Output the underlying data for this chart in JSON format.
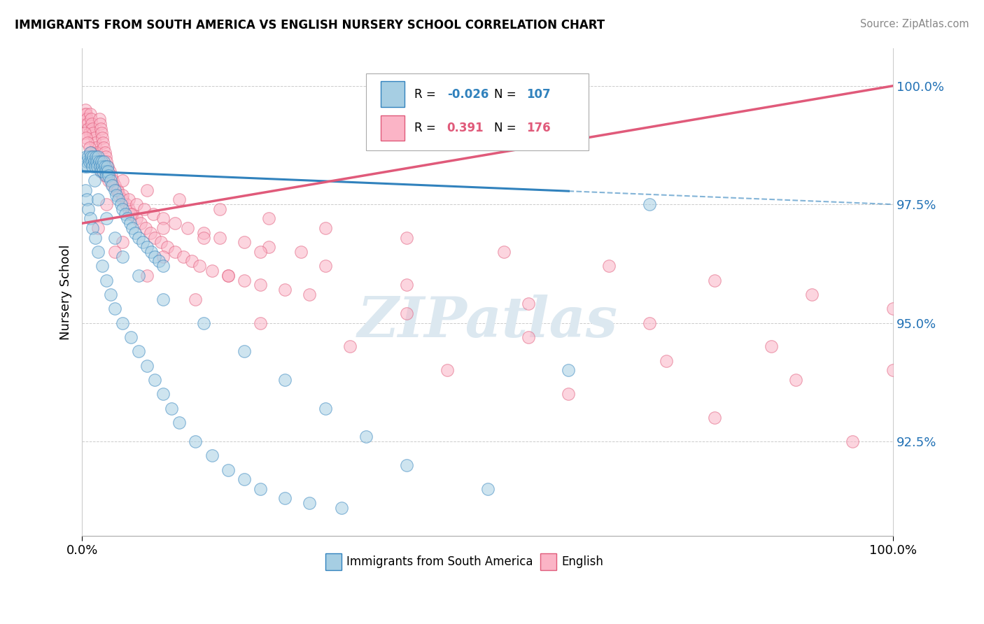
{
  "title": "IMMIGRANTS FROM SOUTH AMERICA VS ENGLISH NURSERY SCHOOL CORRELATION CHART",
  "source": "Source: ZipAtlas.com",
  "ylabel": "Nursery School",
  "xlim": [
    0.0,
    100.0
  ],
  "ylim": [
    90.5,
    100.8
  ],
  "blue_r": "-0.026",
  "blue_n": "107",
  "pink_r": "0.391",
  "pink_n": "176",
  "blue_face": "#a6cee3",
  "blue_edge": "#3182bd",
  "pink_face": "#fbb4c6",
  "pink_edge": "#e05a7a",
  "blue_line_color": "#3182bd",
  "pink_line_color": "#e05a7a",
  "ytick_vals": [
    92.5,
    95.0,
    97.5,
    100.0
  ],
  "blue_trend": [
    98.2,
    97.5
  ],
  "pink_trend": [
    97.1,
    100.0
  ],
  "blue_solid_end": 60.0,
  "blue_x": [
    0.3,
    0.5,
    0.6,
    0.7,
    0.8,
    0.9,
    1.0,
    1.1,
    1.2,
    1.3,
    1.4,
    1.5,
    1.6,
    1.7,
    1.8,
    1.9,
    2.0,
    2.1,
    2.2,
    2.3,
    2.4,
    2.5,
    2.6,
    2.7,
    2.8,
    2.9,
    3.0,
    3.1,
    3.2,
    3.3,
    3.5,
    3.7,
    4.0,
    4.2,
    4.5,
    4.8,
    5.0,
    5.3,
    5.6,
    5.9,
    6.2,
    6.5,
    7.0,
    7.5,
    8.0,
    8.5,
    9.0,
    9.5,
    10.0,
    0.4,
    0.6,
    0.8,
    1.0,
    1.3,
    1.6,
    2.0,
    2.5,
    3.0,
    3.5,
    4.0,
    5.0,
    6.0,
    7.0,
    8.0,
    9.0,
    10.0,
    11.0,
    12.0,
    14.0,
    16.0,
    18.0,
    20.0,
    22.0,
    25.0,
    28.0,
    32.0,
    1.5,
    2.0,
    3.0,
    4.0,
    5.0,
    7.0,
    10.0,
    15.0,
    20.0,
    25.0,
    30.0,
    35.0,
    40.0,
    50.0,
    60.0,
    70.0
  ],
  "blue_y": [
    98.3,
    98.5,
    98.4,
    98.3,
    98.5,
    98.4,
    98.6,
    98.5,
    98.4,
    98.3,
    98.5,
    98.4,
    98.3,
    98.5,
    98.4,
    98.3,
    98.5,
    98.4,
    98.3,
    98.2,
    98.4,
    98.3,
    98.2,
    98.4,
    98.3,
    98.2,
    98.1,
    98.3,
    98.2,
    98.1,
    98.0,
    97.9,
    97.8,
    97.7,
    97.6,
    97.5,
    97.4,
    97.3,
    97.2,
    97.1,
    97.0,
    96.9,
    96.8,
    96.7,
    96.6,
    96.5,
    96.4,
    96.3,
    96.2,
    97.8,
    97.6,
    97.4,
    97.2,
    97.0,
    96.8,
    96.5,
    96.2,
    95.9,
    95.6,
    95.3,
    95.0,
    94.7,
    94.4,
    94.1,
    93.8,
    93.5,
    93.2,
    92.9,
    92.5,
    92.2,
    91.9,
    91.7,
    91.5,
    91.3,
    91.2,
    91.1,
    98.0,
    97.6,
    97.2,
    96.8,
    96.4,
    96.0,
    95.5,
    95.0,
    94.4,
    93.8,
    93.2,
    92.6,
    92.0,
    91.5,
    94.0,
    97.5
  ],
  "pink_x": [
    0.2,
    0.3,
    0.4,
    0.5,
    0.6,
    0.7,
    0.8,
    0.9,
    1.0,
    1.1,
    1.2,
    1.3,
    1.4,
    1.5,
    1.6,
    1.7,
    1.8,
    1.9,
    2.0,
    2.1,
    2.2,
    2.3,
    2.4,
    2.5,
    2.6,
    2.7,
    2.8,
    2.9,
    3.0,
    3.2,
    3.4,
    3.6,
    3.8,
    4.0,
    4.3,
    4.6,
    5.0,
    5.4,
    5.8,
    6.2,
    6.7,
    7.2,
    7.8,
    8.4,
    9.0,
    9.7,
    10.5,
    11.5,
    12.5,
    13.5,
    14.5,
    16.0,
    18.0,
    20.0,
    22.0,
    25.0,
    0.3,
    0.5,
    0.7,
    0.9,
    1.1,
    1.4,
    1.7,
    2.0,
    2.4,
    2.8,
    3.3,
    3.8,
    4.4,
    5.0,
    5.8,
    6.7,
    7.7,
    8.8,
    10.0,
    11.5,
    13.0,
    15.0,
    17.0,
    20.0,
    23.0,
    27.0,
    5.0,
    8.0,
    12.0,
    17.0,
    23.0,
    30.0,
    40.0,
    52.0,
    65.0,
    78.0,
    90.0,
    100.0,
    3.0,
    6.0,
    10.0,
    15.0,
    22.0,
    30.0,
    40.0,
    55.0,
    70.0,
    85.0,
    100.0,
    2.0,
    5.0,
    10.0,
    18.0,
    28.0,
    40.0,
    55.0,
    72.0,
    88.0,
    4.0,
    8.0,
    14.0,
    22.0,
    33.0,
    45.0,
    60.0,
    78.0,
    95.0
  ],
  "pink_y": [
    99.3,
    99.4,
    99.5,
    99.4,
    99.3,
    99.2,
    99.1,
    99.0,
    99.4,
    99.3,
    99.2,
    99.1,
    99.0,
    98.9,
    98.8,
    98.7,
    98.6,
    98.5,
    98.4,
    99.3,
    99.2,
    99.1,
    99.0,
    98.9,
    98.8,
    98.7,
    98.6,
    98.5,
    98.4,
    98.3,
    98.2,
    98.1,
    98.0,
    97.9,
    97.8,
    97.7,
    97.6,
    97.5,
    97.4,
    97.3,
    97.2,
    97.1,
    97.0,
    96.9,
    96.8,
    96.7,
    96.6,
    96.5,
    96.4,
    96.3,
    96.2,
    96.1,
    96.0,
    95.9,
    95.8,
    95.7,
    99.0,
    98.9,
    98.8,
    98.7,
    98.6,
    98.5,
    98.4,
    98.3,
    98.2,
    98.1,
    98.0,
    97.9,
    97.8,
    97.7,
    97.6,
    97.5,
    97.4,
    97.3,
    97.2,
    97.1,
    97.0,
    96.9,
    96.8,
    96.7,
    96.6,
    96.5,
    98.0,
    97.8,
    97.6,
    97.4,
    97.2,
    97.0,
    96.8,
    96.5,
    96.2,
    95.9,
    95.6,
    95.3,
    97.5,
    97.3,
    97.0,
    96.8,
    96.5,
    96.2,
    95.8,
    95.4,
    95.0,
    94.5,
    94.0,
    97.0,
    96.7,
    96.4,
    96.0,
    95.6,
    95.2,
    94.7,
    94.2,
    93.8,
    96.5,
    96.0,
    95.5,
    95.0,
    94.5,
    94.0,
    93.5,
    93.0,
    92.5
  ]
}
